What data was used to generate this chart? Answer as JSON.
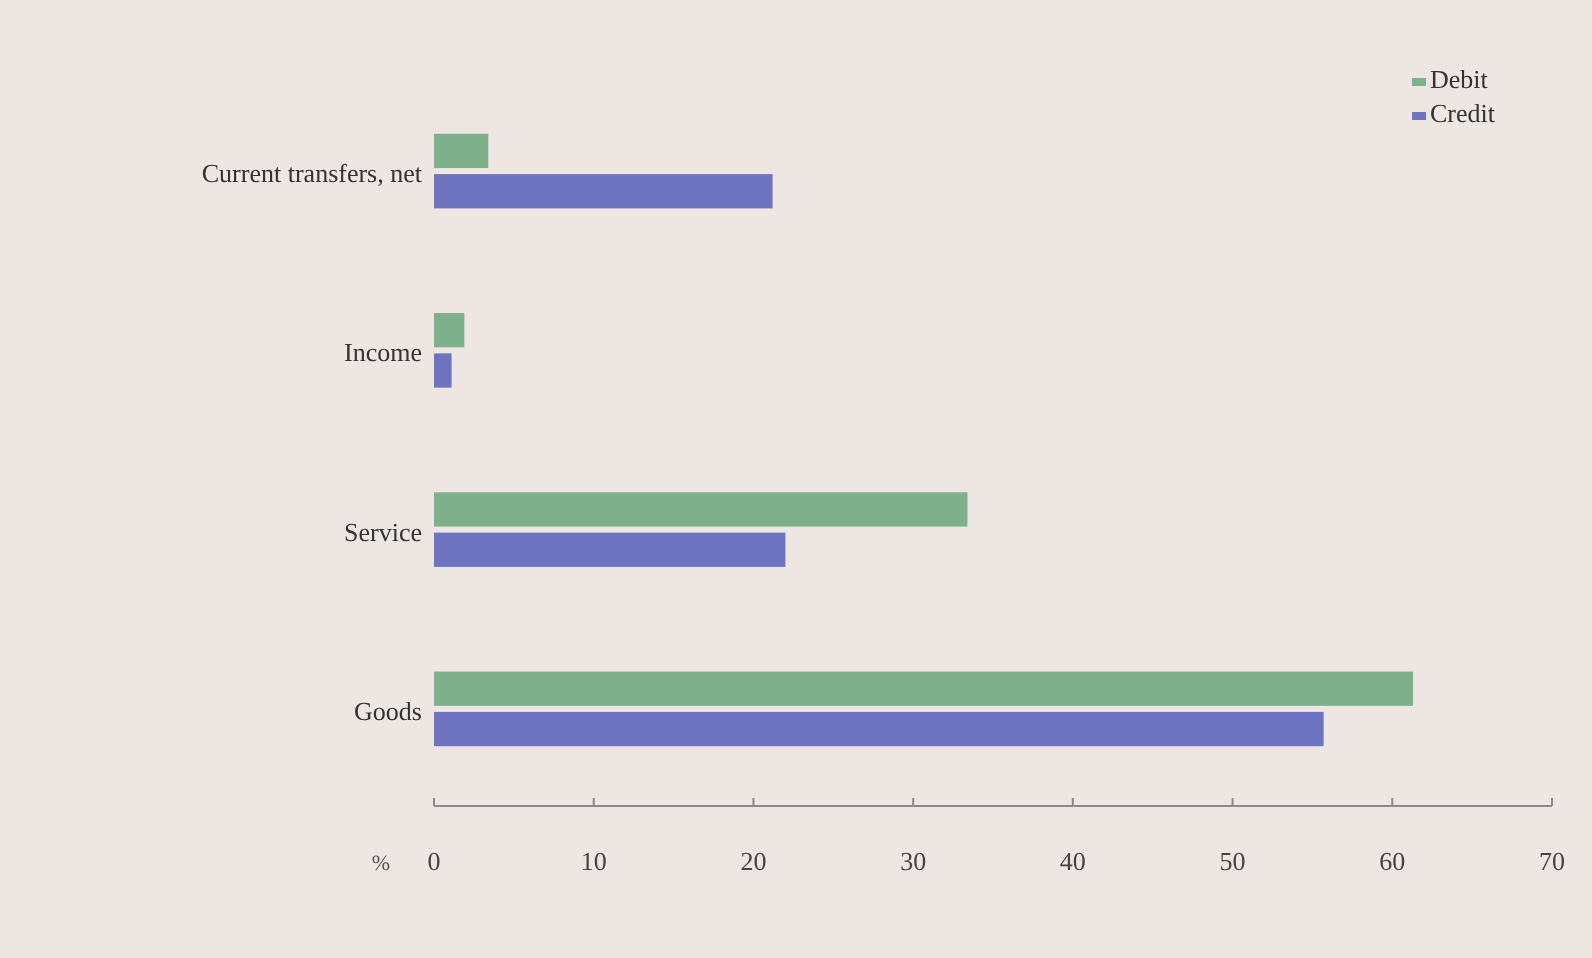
{
  "chart_data": {
    "type": "bar",
    "orientation": "horizontal",
    "xlabel": "%",
    "categories": [
      "Current transfers, net",
      "Income",
      "Service",
      "Goods"
    ],
    "series": [
      {
        "name": "Debit",
        "color": "#7fb08c",
        "values": [
          3.4,
          1.9,
          33.4,
          61.3
        ]
      },
      {
        "name": "Credit",
        "color": "#6f74c0",
        "values": [
          21.2,
          1.1,
          22.0,
          55.7
        ]
      }
    ],
    "xlim": [
      0,
      70
    ],
    "xticks": [
      0,
      10,
      20,
      30,
      40,
      50,
      60,
      70
    ],
    "legend": "top right",
    "grid": false
  }
}
